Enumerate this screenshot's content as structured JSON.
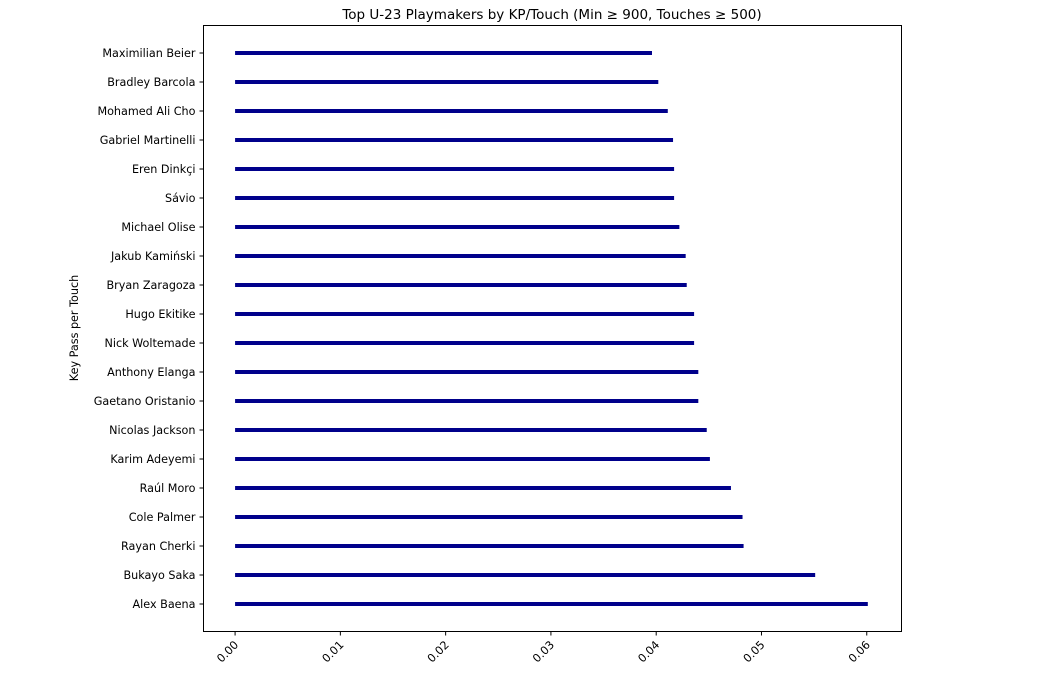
{
  "chart_data": {
    "type": "bar",
    "orientation": "horizontal",
    "title": "Top U-23 Playmakers by KP/Touch (Min ≥ 900, Touches ≥ 500)",
    "xlabel": "",
    "ylabel": "Key Pass per Touch",
    "xlim": [
      -0.003,
      0.0633
    ],
    "x_ticks": [
      0.0,
      0.01,
      0.02,
      0.03,
      0.04,
      0.05,
      0.06
    ],
    "x_tick_labels": [
      "0.00",
      "0.01",
      "0.02",
      "0.03",
      "0.04",
      "0.05",
      "0.06"
    ],
    "grid": false,
    "bar_color": "#00008b",
    "categories": [
      "Maximilian Beier",
      "Bradley Barcola",
      "Mohamed Ali Cho",
      "Gabriel Martinelli",
      "Eren Dinkçi",
      "Sávio",
      "Michael Olise",
      "Jakub Kamiński",
      "Bryan Zaragoza",
      "Hugo Ekitike",
      "Nick Woltemade",
      "Anthony Elanga",
      "Gaetano Oristanio",
      "Nicolas Jackson",
      "Karim Adeyemi",
      "Raúl Moro",
      "Cole Palmer",
      "Rayan Cherki",
      "Bukayo Saka",
      "Alex Baena"
    ],
    "values": [
      0.0396,
      0.0402,
      0.0411,
      0.0416,
      0.0417,
      0.0417,
      0.0422,
      0.0428,
      0.0429,
      0.0436,
      0.0436,
      0.044,
      0.044,
      0.0448,
      0.0451,
      0.0471,
      0.0482,
      0.0483,
      0.0551,
      0.0601
    ]
  }
}
